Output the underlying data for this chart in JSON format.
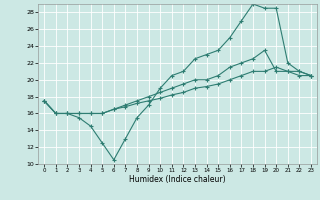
{
  "xlabel": "Humidex (Indice chaleur)",
  "background_color": "#cce8e4",
  "grid_color": "#ffffff",
  "line_color": "#2e7d72",
  "xlim": [
    -0.5,
    23.5
  ],
  "ylim": [
    10,
    29
  ],
  "xticks": [
    0,
    1,
    2,
    3,
    4,
    5,
    6,
    7,
    8,
    9,
    10,
    11,
    12,
    13,
    14,
    15,
    16,
    17,
    18,
    19,
    20,
    21,
    22,
    23
  ],
  "yticks": [
    10,
    12,
    14,
    16,
    18,
    20,
    22,
    24,
    26,
    28
  ],
  "line1_x": [
    0,
    1,
    2,
    3,
    4,
    5,
    6,
    7,
    8,
    9,
    10,
    11,
    12,
    13,
    14,
    15,
    16,
    17,
    18,
    19,
    20,
    21,
    22,
    23
  ],
  "line1_y": [
    17.5,
    16.0,
    16.0,
    15.5,
    14.5,
    12.5,
    10.5,
    13.0,
    15.5,
    17.0,
    19.0,
    20.5,
    21.0,
    22.5,
    23.0,
    23.5,
    25.0,
    27.0,
    29.0,
    28.5,
    28.5,
    22.0,
    21.0,
    20.5
  ],
  "line2_x": [
    0,
    1,
    2,
    3,
    4,
    5,
    6,
    7,
    8,
    9,
    10,
    11,
    12,
    13,
    14,
    15,
    16,
    17,
    18,
    19,
    20,
    21,
    22,
    23
  ],
  "line2_y": [
    17.5,
    16.0,
    16.0,
    16.0,
    16.0,
    16.0,
    16.5,
    16.8,
    17.2,
    17.5,
    17.8,
    18.2,
    18.5,
    19.0,
    19.2,
    19.5,
    20.0,
    20.5,
    21.0,
    21.0,
    21.5,
    21.0,
    21.0,
    20.5
  ],
  "line3_x": [
    0,
    1,
    2,
    3,
    4,
    5,
    6,
    7,
    8,
    9,
    10,
    11,
    12,
    13,
    14,
    15,
    16,
    17,
    18,
    19,
    20,
    21,
    22,
    23
  ],
  "line3_y": [
    17.5,
    16.0,
    16.0,
    16.0,
    16.0,
    16.0,
    16.5,
    17.0,
    17.5,
    18.0,
    18.5,
    19.0,
    19.5,
    20.0,
    20.0,
    20.5,
    21.5,
    22.0,
    22.5,
    23.5,
    21.0,
    21.0,
    20.5,
    20.5
  ]
}
